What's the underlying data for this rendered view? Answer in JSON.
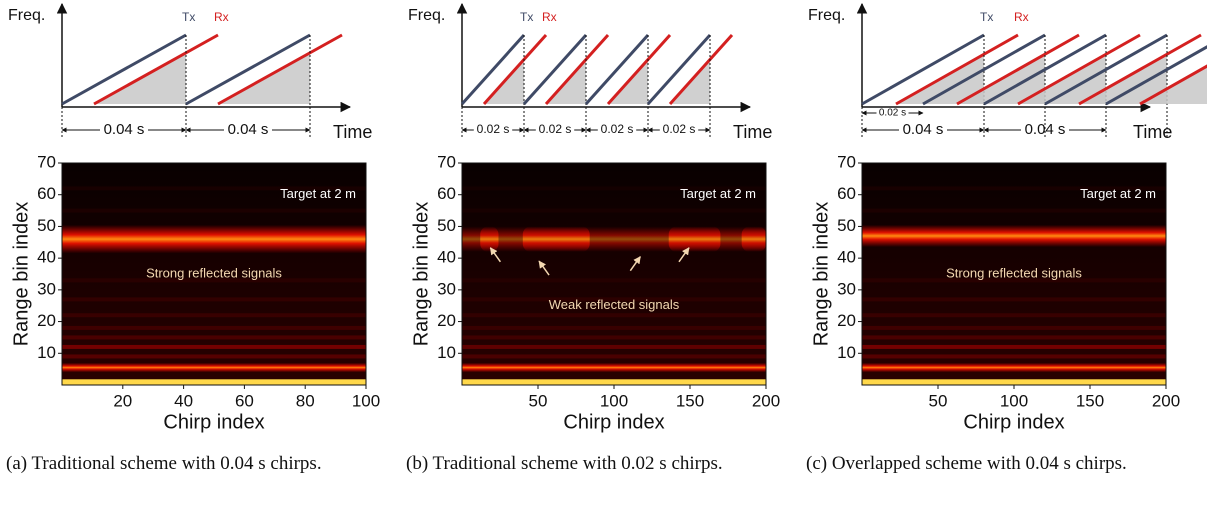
{
  "panels": [
    {
      "diagram": {
        "freq_label": "Freq.",
        "tx_label": "Tx",
        "rx_label": "Rx",
        "time_label": "Time",
        "intervals": [
          "0.04 s",
          "0.04 s"
        ]
      },
      "heatmap": {
        "y_label": "Range bin index",
        "x_label": "Chirp index",
        "xlim": [
          0,
          100
        ],
        "ylim": [
          0,
          70
        ],
        "xticks": [
          20,
          40,
          60,
          80,
          100
        ],
        "yticks": [
          10,
          20,
          30,
          40,
          50,
          60,
          70
        ],
        "annotations": [
          "Target at 2 m",
          "Strong reflected signals"
        ]
      },
      "caption": "(a) Traditional scheme with 0.04 s chirps."
    },
    {
      "diagram": {
        "freq_label": "Freq.",
        "tx_label": "Tx",
        "rx_label": "Rx",
        "time_label": "Time",
        "intervals": [
          "0.02 s",
          "0.02 s",
          "0.02 s",
          "0.02 s"
        ]
      },
      "heatmap": {
        "y_label": "Range bin index",
        "x_label": "Chirp index",
        "xlim": [
          0,
          200
        ],
        "ylim": [
          0,
          70
        ],
        "xticks": [
          50,
          100,
          150,
          200
        ],
        "yticks": [
          10,
          20,
          30,
          40,
          50,
          60,
          70
        ],
        "annotations": [
          "Target at 2 m",
          "Weak reflected signals"
        ]
      },
      "caption": "(b) Traditional scheme with 0.02 s chirps."
    },
    {
      "diagram": {
        "freq_label": "Freq.",
        "tx_label": "Tx",
        "rx_label": "Rx",
        "time_label": "Time",
        "intervals": [
          "0.02 s",
          "0.04 s",
          "0.04 s"
        ]
      },
      "heatmap": {
        "y_label": "Range bin index",
        "x_label": "Chirp index",
        "xlim": [
          0,
          200
        ],
        "ylim": [
          0,
          70
        ],
        "xticks": [
          50,
          100,
          150,
          200
        ],
        "yticks": [
          10,
          20,
          30,
          40,
          50,
          60,
          70
        ],
        "annotations": [
          "Target at 2 m",
          "Strong reflected signals"
        ]
      },
      "caption": "(c) Overlapped scheme with 0.04 s chirps."
    }
  ]
}
